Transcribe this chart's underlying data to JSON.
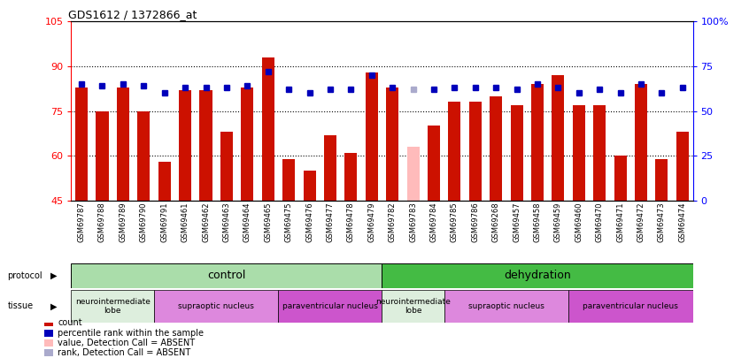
{
  "title": "GDS1612 / 1372866_at",
  "samples": [
    "GSM69787",
    "GSM69788",
    "GSM69789",
    "GSM69790",
    "GSM69791",
    "GSM69461",
    "GSM69462",
    "GSM69463",
    "GSM69464",
    "GSM69465",
    "GSM69475",
    "GSM69476",
    "GSM69477",
    "GSM69478",
    "GSM69479",
    "GSM69782",
    "GSM69783",
    "GSM69784",
    "GSM69785",
    "GSM69786",
    "GSM69268",
    "GSM69457",
    "GSM69458",
    "GSM69459",
    "GSM69460",
    "GSM69470",
    "GSM69471",
    "GSM69472",
    "GSM69473",
    "GSM69474"
  ],
  "bar_values": [
    83,
    75,
    83,
    75,
    58,
    82,
    82,
    68,
    83,
    93,
    59,
    55,
    67,
    61,
    88,
    83,
    63,
    70,
    78,
    78,
    80,
    77,
    84,
    87,
    77,
    77,
    60,
    84,
    59,
    68
  ],
  "bar_absent": [
    false,
    false,
    false,
    false,
    false,
    false,
    false,
    false,
    false,
    false,
    false,
    false,
    false,
    false,
    false,
    false,
    true,
    false,
    false,
    false,
    false,
    false,
    false,
    false,
    false,
    false,
    false,
    false,
    false,
    false
  ],
  "rank_values_pct": [
    65,
    64,
    65,
    64,
    60,
    63,
    63,
    63,
    64,
    72,
    62,
    60,
    62,
    62,
    70,
    63,
    62,
    62,
    63,
    63,
    63,
    62,
    65,
    63,
    60,
    62,
    60,
    65,
    60,
    63
  ],
  "rank_absent": [
    false,
    false,
    false,
    false,
    false,
    false,
    false,
    false,
    false,
    false,
    false,
    false,
    false,
    false,
    false,
    false,
    true,
    false,
    false,
    false,
    false,
    false,
    false,
    false,
    false,
    false,
    false,
    false,
    false,
    false
  ],
  "ylim_left": [
    45,
    105
  ],
  "ylim_right": [
    0,
    100
  ],
  "yticks_left": [
    45,
    60,
    75,
    90,
    105
  ],
  "yticks_right": [
    0,
    25,
    50,
    75,
    100
  ],
  "ytick_labels_right": [
    "0",
    "25",
    "50",
    "75",
    "100%"
  ],
  "bar_color": "#cc1100",
  "bar_absent_color": "#ffbbbb",
  "rank_color": "#0000bb",
  "rank_absent_color": "#aaaacc",
  "protocol_control_color": "#aaddaa",
  "protocol_dehydration_color": "#44bb44",
  "tissue_neuro_color": "#ddeedd",
  "tissue_supraoptic_color": "#dd88dd",
  "tissue_para_color": "#cc55cc",
  "protocol_control_range": [
    0,
    14
  ],
  "protocol_dehydration_range": [
    15,
    29
  ],
  "tissue_groups": [
    {
      "label": "neurointermediate\nlobe",
      "color": "#ddeedd",
      "start": 0,
      "end": 3
    },
    {
      "label": "supraoptic nucleus",
      "color": "#dd88dd",
      "start": 4,
      "end": 9
    },
    {
      "label": "paraventricular nucleus",
      "color": "#cc55cc",
      "start": 10,
      "end": 14
    },
    {
      "label": "neurointermediate\nlobe",
      "color": "#ddeedd",
      "start": 15,
      "end": 17
    },
    {
      "label": "supraoptic nucleus",
      "color": "#dd88dd",
      "start": 18,
      "end": 23
    },
    {
      "label": "paraventricular nucleus",
      "color": "#cc55cc",
      "start": 24,
      "end": 29
    }
  ],
  "legend_items": [
    {
      "label": "count",
      "color": "#cc1100"
    },
    {
      "label": "percentile rank within the sample",
      "color": "#0000bb"
    },
    {
      "label": "value, Detection Call = ABSENT",
      "color": "#ffbbbb"
    },
    {
      "label": "rank, Detection Call = ABSENT",
      "color": "#aaaacc"
    }
  ]
}
